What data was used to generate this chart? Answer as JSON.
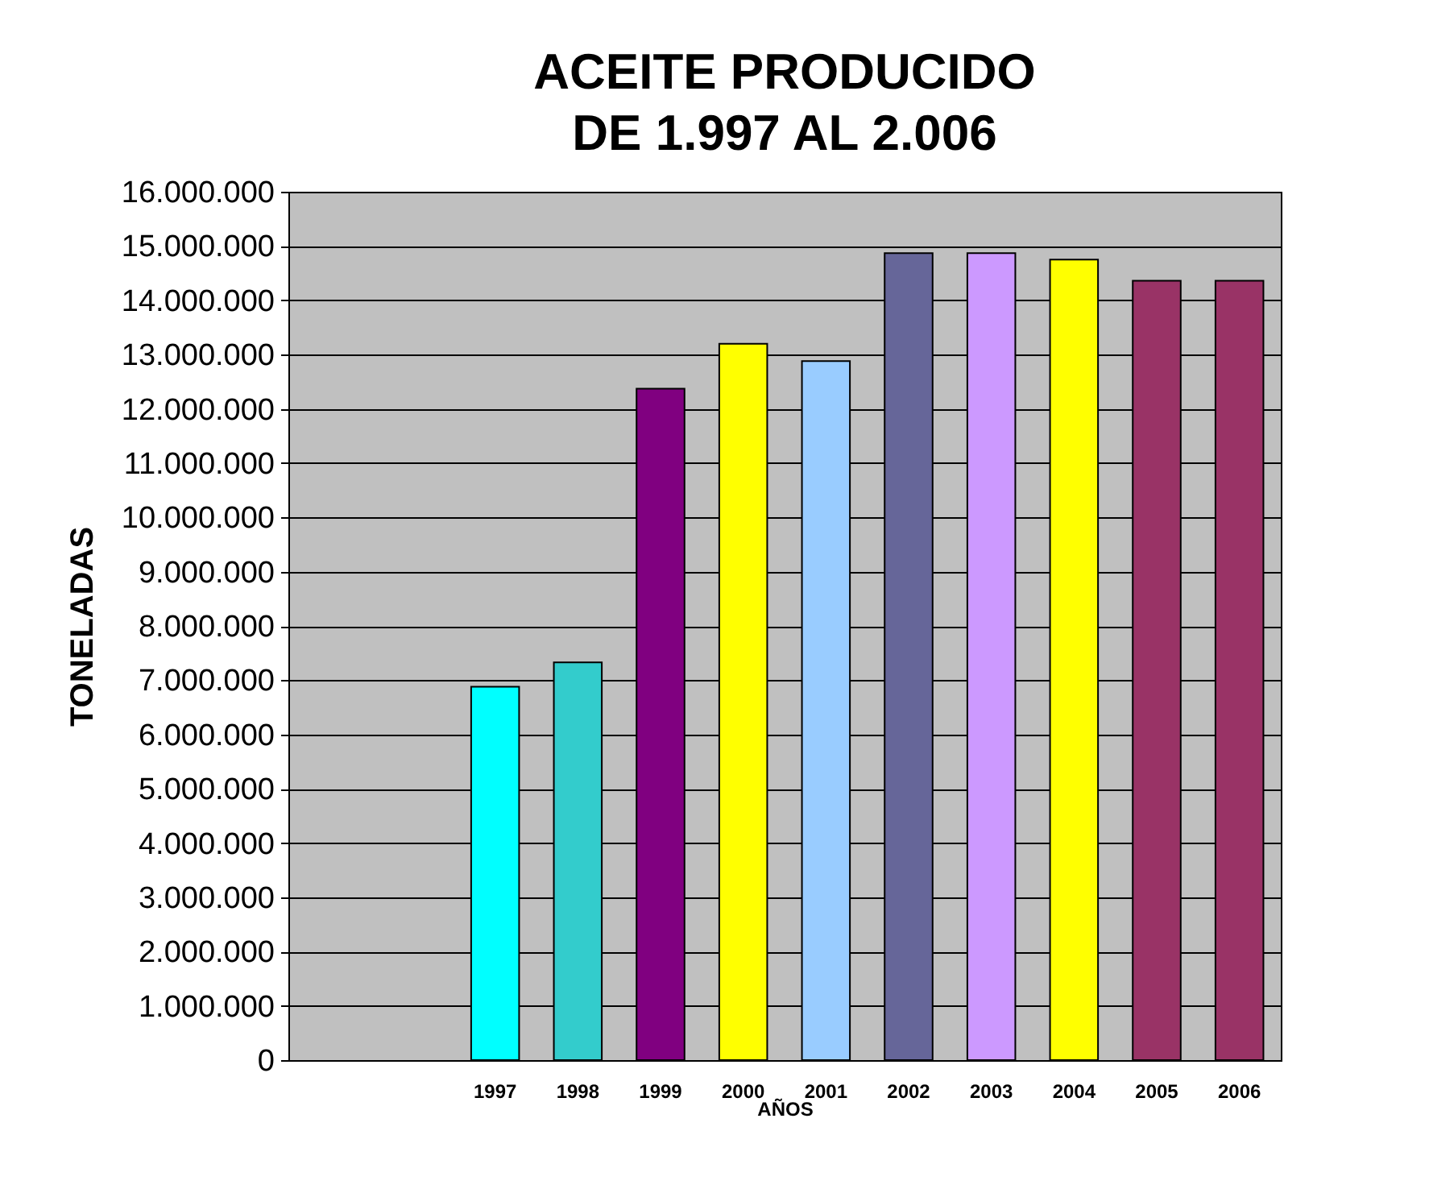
{
  "chart_data": {
    "type": "bar",
    "title": [
      "ACEITE PRODUCIDO",
      "DE  1.997 AL 2.006"
    ],
    "xlabel": "AÑOS",
    "ylabel": "TONELADAS",
    "categories": [
      null,
      null,
      "1997",
      "1998",
      "1999",
      "2000",
      "2001",
      "2002",
      "2003",
      "2004",
      "2005",
      "2006"
    ],
    "values": [
      null,
      null,
      6880000,
      7330000,
      12370000,
      13200000,
      12880000,
      14870000,
      14870000,
      14750000,
      14360000,
      14360000
    ],
    "colors": [
      "#00ffff",
      "#00ffff",
      "#00ffff",
      "#33cccc",
      "#800080",
      "#ffff00",
      "#99ccff",
      "#666699",
      "#cc99ff",
      "#ffff00",
      "#993366",
      "#993366"
    ],
    "ylim": [
      0,
      16000000
    ],
    "yticks": [
      {
        "value": 0,
        "label": "0"
      },
      {
        "value": 1000000,
        "label": "1.000.000"
      },
      {
        "value": 2000000,
        "label": "2.000.000"
      },
      {
        "value": 3000000,
        "label": "3.000.000"
      },
      {
        "value": 4000000,
        "label": "4.000.000"
      },
      {
        "value": 5000000,
        "label": "5.000.000"
      },
      {
        "value": 6000000,
        "label": "6.000.000"
      },
      {
        "value": 7000000,
        "label": "7.000.000"
      },
      {
        "value": 8000000,
        "label": "8.000.000"
      },
      {
        "value": 9000000,
        "label": "9.000.000"
      },
      {
        "value": 10000000,
        "label": "10.000.000"
      },
      {
        "value": 11000000,
        "label": "11.000.000"
      },
      {
        "value": 12000000,
        "label": "12.000.000"
      },
      {
        "value": 13000000,
        "label": "13.000.000"
      },
      {
        "value": 14000000,
        "label": "14.000.000"
      },
      {
        "value": 15000000,
        "label": "15.000.000"
      },
      {
        "value": 16000000,
        "label": "16.000.000"
      }
    ],
    "grid": "y"
  }
}
